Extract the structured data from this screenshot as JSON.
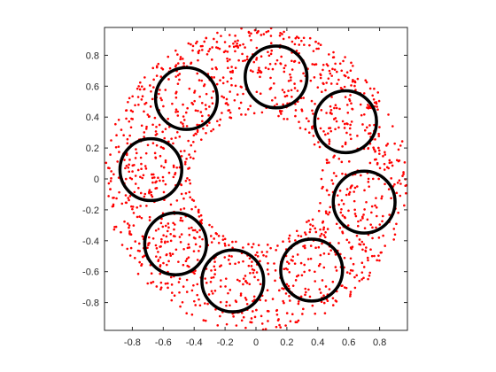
{
  "chart_data": {
    "type": "scatter",
    "title": "",
    "xlabel": "",
    "ylabel": "",
    "xlim": [
      -0.98,
      0.98
    ],
    "ylim": [
      -0.98,
      0.98
    ],
    "grid": false,
    "legend": "none",
    "aspect": "equal",
    "box": true,
    "x_ticks": [
      -0.8,
      -0.6,
      -0.4,
      -0.2,
      0,
      0.2,
      0.4,
      0.6,
      0.8
    ],
    "x_tick_labels": [
      "-0.8",
      "-0.6",
      "-0.4",
      "-0.2",
      "0",
      "0.2",
      "0.4",
      "0.6",
      "0.8"
    ],
    "y_ticks": [
      0.8,
      0.6,
      0.4,
      0.2,
      0,
      -0.2,
      -0.4,
      -0.6,
      -0.8
    ],
    "y_tick_labels": [
      "0.8",
      "0.6",
      "0.4",
      "0.2",
      "0",
      "-0.2",
      "-0.4",
      "-0.6",
      "-0.8"
    ],
    "points": {
      "color": "#ff0000",
      "marker": "dot",
      "approx_count": 1500,
      "distribution": "annulus",
      "inner_radius": 0.42,
      "outer_radius": 0.98
    },
    "circles": {
      "color": "#000000",
      "radius": 0.2,
      "centers": [
        [
          0.13,
          0.66
        ],
        [
          0.58,
          0.37
        ],
        [
          0.7,
          -0.15
        ],
        [
          0.36,
          -0.59
        ],
        [
          -0.15,
          -0.66
        ],
        [
          -0.52,
          -0.42
        ],
        [
          -0.68,
          0.06
        ],
        [
          -0.45,
          0.52
        ]
      ]
    }
  }
}
